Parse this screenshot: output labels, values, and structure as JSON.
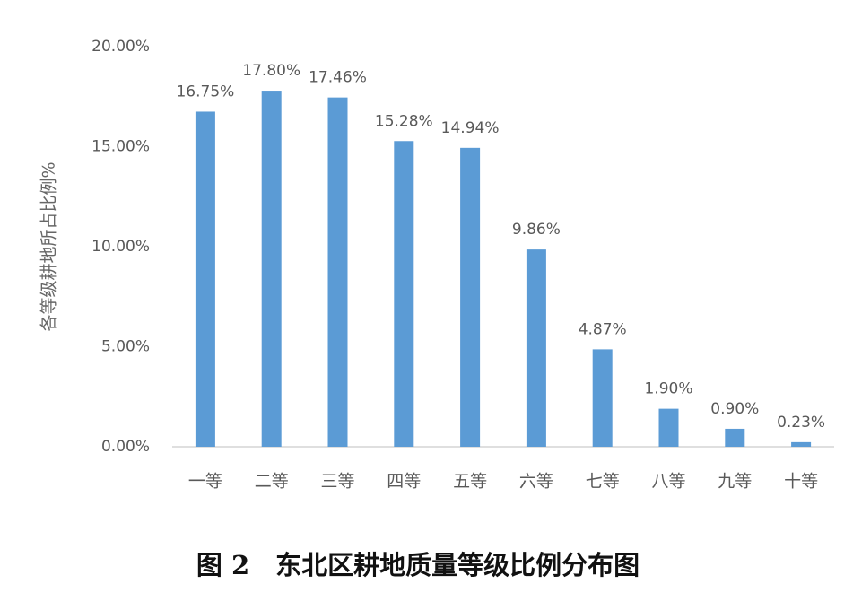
{
  "chart_data": {
    "type": "bar",
    "title": "图 2　东北区耕地质量等级比例分布图",
    "y_label": "各等级耕地所占比例%",
    "categories": [
      "一等",
      "二等",
      "三等",
      "四等",
      "五等",
      "六等",
      "七等",
      "八等",
      "九等",
      "十等"
    ],
    "values": [
      16.75,
      17.8,
      17.46,
      15.28,
      14.94,
      9.86,
      4.87,
      1.9,
      0.9,
      0.23
    ],
    "value_labels": [
      "16.75%",
      "17.80%",
      "17.46%",
      "15.28%",
      "14.94%",
      "9.86%",
      "4.87%",
      "1.90%",
      "0.90%",
      "0.23%"
    ],
    "color": "#5b9bd5",
    "ylim": [
      0,
      20
    ],
    "yticks": [
      {
        "value": 0,
        "label": "0.00%"
      },
      {
        "value": 5,
        "label": "5.00%"
      },
      {
        "value": 10,
        "label": "10.00%"
      },
      {
        "value": 15,
        "label": "15.00%"
      },
      {
        "value": 20,
        "label": "20.00%"
      }
    ],
    "grid": false
  }
}
